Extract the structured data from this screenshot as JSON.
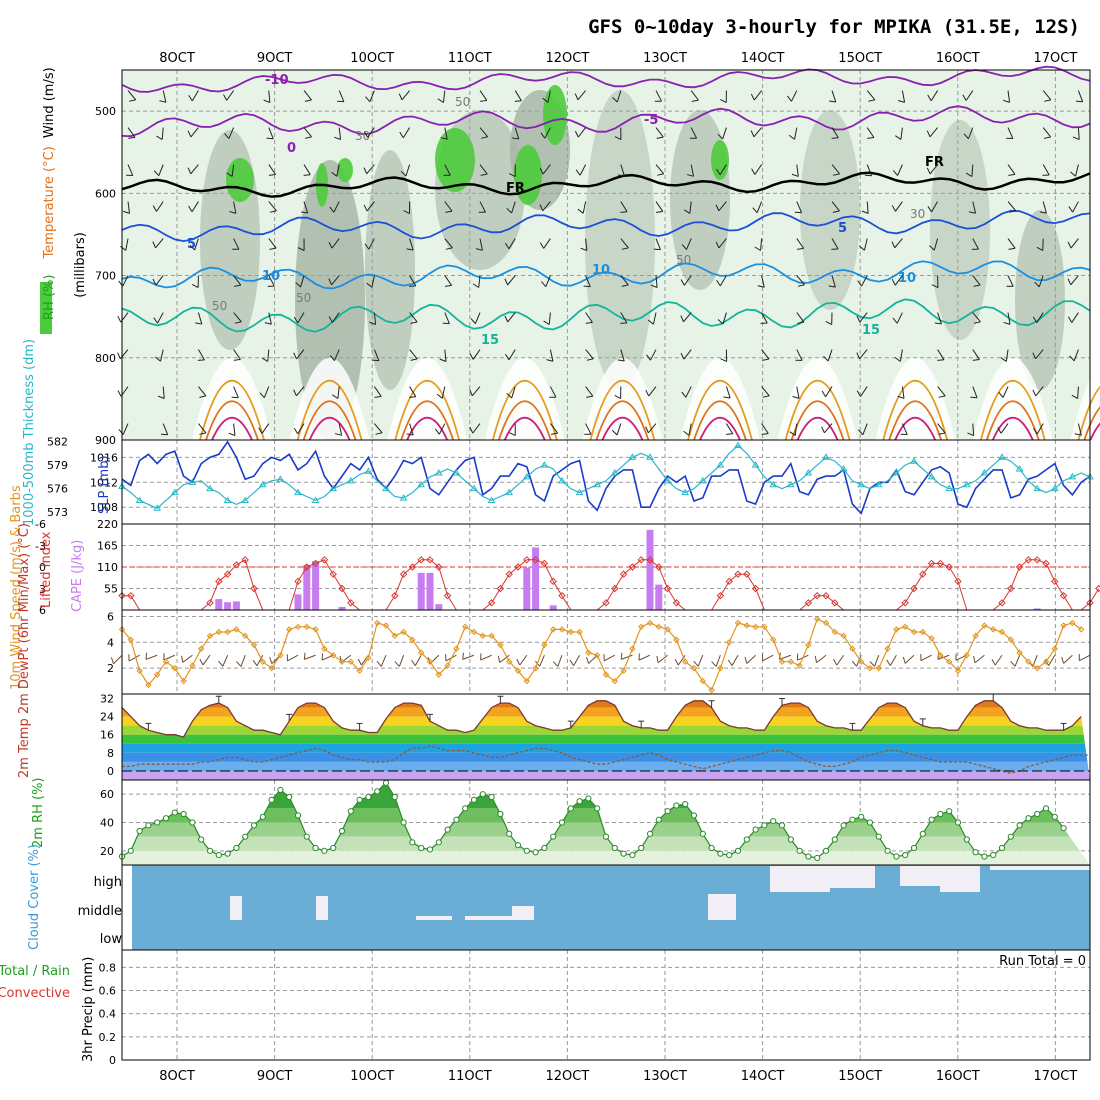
{
  "title": "GFS 0~10day 3-hourly for MPIKA (31.5E, 12S)",
  "colors": {
    "purple": "#8a1fb0",
    "blue": "#1a4fd6",
    "lightblue": "#1c8ee0",
    "teal": "#14b39a",
    "orange": "#e59b1c",
    "darkorange": "#e0701a",
    "magenta": "#d11a7a",
    "cyan": "#27b7c9",
    "navy": "#1a3bc9",
    "cape": "#c77cf0",
    "li": "#d9342b",
    "windspd": "#e3951c",
    "barb": "#6b4a2e",
    "rh": "#3aa63a",
    "cloud": "#6aaed6"
  },
  "chart_data": [
    {
      "type": "contour",
      "panel": "upper-air",
      "ylabel_parts": [
        "RH (%)",
        "Temperature (°C)",
        "Wind (m/s)"
      ],
      "ylabel_units": "(millibars)",
      "ylim": [
        900,
        450
      ],
      "y_ticks": [
        500,
        600,
        700,
        800,
        900
      ],
      "temp_contour_labels": [
        "-10",
        "-5",
        "0",
        "5",
        "10",
        "15",
        "FR"
      ],
      "rh_contour_labels": [
        "30",
        "50"
      ]
    },
    {
      "type": "line",
      "panel": "thickness-slp",
      "ylabel_left": "1000-500mb Thickness (dm)",
      "ylabel_right": "SLP (mb)",
      "thickness_ticks": [
        582,
        579,
        576,
        573
      ],
      "slp_ticks": [
        1016,
        1012,
        1008
      ],
      "series": [
        {
          "name": "SLP (mb)",
          "values": [
            1012.5,
            1011.5,
            1015.5,
            1016.5,
            1015,
            1016.5,
            1017,
            1013,
            1012,
            1015,
            1016,
            1016.5,
            1018.5,
            1016,
            1012.5,
            1013,
            1015,
            1016,
            1015.5,
            1016.5,
            1014,
            1015,
            1017,
            1013,
            1011,
            1013,
            1015,
            1014,
            1016,
            1012.5,
            1011,
            1013,
            1015.5,
            1015,
            1016,
            1011,
            1010,
            1012,
            1014,
            1015.5,
            1016,
            1010,
            1011,
            1013,
            1013,
            1015,
            1014.5,
            1010,
            1009,
            1013,
            1014,
            1015,
            1015.5,
            1009,
            1007.5,
            1011,
            1013,
            1014,
            1014,
            1008,
            1008,
            1011,
            1013,
            1012,
            1013,
            1009,
            1009.5,
            1013,
            1013,
            1014,
            1014,
            1009,
            1008.5,
            1012,
            1013,
            1013,
            1015,
            1010.5,
            1010,
            1012.5,
            1013,
            1013,
            1014,
            1008.5,
            1007,
            1011,
            1012,
            1012,
            1014,
            1010.5,
            1010,
            1012,
            1014,
            1014.5,
            1013.5,
            1008.5,
            1008,
            1011,
            1012.5,
            1014,
            1014,
            1009.5,
            1010,
            1012.5,
            1013,
            1014,
            1015,
            1011.5,
            1010,
            1012,
            1013
          ]
        },
        {
          "name": "1000-500mb Thickness (dm)",
          "values": [
            576.3,
            575.5,
            574.5,
            574,
            573.5,
            574.5,
            575.5,
            576.5,
            576.8,
            577,
            576,
            575.5,
            574.5,
            574,
            574.5,
            575.5,
            576.5,
            577,
            577.2,
            576.5,
            575.5,
            575,
            574.5,
            575,
            576,
            576.5,
            577,
            577.8,
            578.2,
            577,
            576,
            575,
            574.8,
            575.5,
            576.5,
            577.5,
            578,
            578.5,
            578,
            577,
            576,
            575,
            574.5,
            575,
            575.5,
            576.5,
            577.5,
            578.5,
            579,
            578.5,
            577,
            576,
            575.5,
            576,
            576.5,
            577,
            578,
            579,
            580,
            580.5,
            580,
            578.5,
            577,
            576,
            575.5,
            576,
            577,
            578,
            579,
            580.5,
            581.5,
            580.5,
            579,
            577.5,
            576.5,
            576,
            576.5,
            577,
            578,
            579,
            580,
            579.5,
            578.5,
            577,
            576.5,
            576,
            576.5,
            577,
            578,
            579,
            579.5,
            578.5,
            577.5,
            576.5,
            576,
            576,
            576.5,
            577,
            578,
            579,
            580,
            579.5,
            578.5,
            577,
            576,
            575.5,
            576,
            577,
            577.5,
            578,
            577.5
          ]
        }
      ]
    },
    {
      "type": "bar",
      "panel": "cape-li",
      "ylabel_left": "Lifted Index",
      "ylabel_right": "CAPE (J/kg)",
      "li_ticks": [
        "6",
        "3",
        "0",
        "-3",
        "-6"
      ],
      "cape_ticks": [
        220,
        165,
        110,
        55
      ],
      "series": [
        {
          "name": "CAPE (J/kg)",
          "values": [
            0,
            0,
            0,
            0,
            0,
            0,
            0,
            0,
            0,
            0,
            0,
            28,
            20,
            22,
            0,
            0,
            0,
            0,
            0,
            0,
            40,
            115,
            125,
            0,
            0,
            8,
            0,
            0,
            0,
            0,
            0,
            0,
            0,
            0,
            95,
            95,
            15,
            0,
            0,
            0,
            0,
            0,
            0,
            0,
            0,
            0,
            108,
            160,
            0,
            12,
            0,
            0,
            0,
            0,
            0,
            0,
            0,
            0,
            0,
            0,
            205,
            65,
            0,
            0,
            0,
            0,
            0,
            0,
            0,
            0,
            0,
            0,
            0,
            0,
            0,
            0,
            0,
            0,
            0,
            0,
            0,
            0,
            0,
            0,
            0,
            0,
            0,
            0,
            0,
            0,
            0,
            0,
            0,
            0,
            0,
            0,
            0,
            0,
            0,
            0,
            0,
            0,
            0,
            0,
            4,
            0,
            0,
            0,
            0,
            0,
            0,
            0
          ]
        },
        {
          "name": "Lifted Index",
          "values": [
            4,
            4,
            6,
            6,
            6,
            6,
            6,
            6,
            6,
            6,
            5,
            2,
            1,
            -0.3,
            -1,
            3,
            6,
            6,
            6,
            6,
            2,
            0,
            -0.5,
            -1,
            1,
            3,
            5,
            6,
            6,
            6,
            6,
            4,
            1,
            0,
            -1,
            -1,
            0,
            4,
            6,
            6,
            6,
            6,
            5,
            3,
            1,
            0,
            -1,
            -1,
            -0.5,
            2,
            4,
            6,
            6,
            6,
            6,
            5,
            3,
            1,
            0,
            -1,
            -1,
            0,
            3,
            5,
            6,
            6,
            6,
            6,
            4,
            2,
            1,
            1,
            3,
            6,
            6,
            6,
            6,
            6,
            5,
            4,
            4,
            5,
            6,
            6,
            6,
            6,
            6,
            6,
            6,
            5,
            3,
            1,
            -0.5,
            -0.5,
            0,
            2,
            6,
            6,
            6,
            6,
            5,
            3,
            0,
            -1,
            -1,
            -0.5,
            2,
            4,
            6,
            6,
            5,
            3
          ]
        }
      ]
    },
    {
      "type": "line",
      "panel": "wind10m",
      "ylabel": "10m Wind Speed (m/s) & Barbs",
      "y_ticks": [
        6,
        4,
        2
      ],
      "ylim": [
        0,
        6.5
      ],
      "series": [
        {
          "name": "10m Wind Speed (m/s)",
          "values": [
            5,
            4.2,
            1.8,
            0.7,
            1.5,
            2.5,
            2,
            1,
            2.2,
            3.5,
            4.5,
            4.8,
            4.8,
            5,
            4.5,
            3.8,
            2.5,
            2,
            3,
            5,
            5.2,
            5.2,
            5,
            3.5,
            3,
            2.5,
            2.5,
            1.8,
            2.8,
            5.5,
            5.3,
            4.5,
            4.8,
            4.2,
            3.2,
            2.5,
            1.5,
            2.2,
            3.5,
            5.2,
            4.8,
            4.5,
            4.5,
            3.8,
            2.5,
            1.8,
            1,
            2,
            3.8,
            5,
            5,
            4.8,
            4.8,
            3.2,
            3,
            1.5,
            1,
            1.8,
            3.5,
            5.2,
            5.5,
            5.2,
            5,
            4.2,
            2.5,
            2,
            1,
            0.3,
            2,
            4,
            5.5,
            5.3,
            5.2,
            5.2,
            4.2,
            2.5,
            2.5,
            2.2,
            3.8,
            5.8,
            5.5,
            4.8,
            4.5,
            3.5,
            2.5,
            2,
            2,
            3.5,
            5,
            5.2,
            4.8,
            4.8,
            4.3,
            3,
            2.5,
            1.8,
            3,
            4.5,
            5.3,
            5,
            4.8,
            4.2,
            3.2,
            2.5,
            2,
            2.5,
            3.5,
            5.3,
            5.5,
            5
          ]
        }
      ]
    },
    {
      "type": "area",
      "panel": "temp2m",
      "ylabel": "2m Temp 2m DewPt (6hr Min/Max) (°C)",
      "y_ticks": [
        32,
        24,
        16,
        8,
        0
      ],
      "ylim": [
        -4,
        34
      ],
      "series": [
        {
          "name": "2m Temp (°C)",
          "values": [
            28,
            24,
            20,
            18,
            17,
            16,
            16,
            15,
            22,
            27,
            29,
            30,
            28,
            22,
            20,
            18,
            18,
            17,
            16,
            22,
            28,
            30,
            30,
            28,
            22,
            19,
            18,
            18,
            17,
            17,
            23,
            28,
            30,
            30,
            29,
            22,
            20,
            18,
            18,
            17,
            18,
            23,
            28,
            30,
            30,
            28,
            22,
            20,
            19,
            18,
            18,
            19,
            24,
            29,
            31,
            31,
            29,
            22,
            20,
            19,
            19,
            18,
            18,
            24,
            29,
            31,
            31,
            28,
            22,
            20,
            19,
            19,
            18,
            18,
            24,
            29,
            30,
            30,
            28,
            22,
            20,
            19,
            19,
            18,
            18,
            23,
            28,
            30,
            30,
            28,
            22,
            20,
            19,
            19,
            18,
            18,
            24,
            29,
            31,
            31,
            28,
            22,
            20,
            19,
            19,
            18,
            18,
            18,
            20,
            24
          ]
        },
        {
          "name": "2m DewPt (°C)",
          "values": [
            2,
            2,
            3,
            3,
            3,
            3,
            3,
            3,
            3,
            4,
            4,
            5,
            6,
            6,
            5,
            4,
            4,
            5,
            6,
            7,
            8,
            9,
            10,
            9,
            7,
            6,
            5,
            5,
            4,
            4,
            4,
            5,
            8,
            10,
            10,
            11,
            10,
            9,
            9,
            9,
            8,
            7,
            6,
            6,
            7,
            8,
            9,
            10,
            10,
            9,
            8,
            6,
            5,
            4,
            3,
            3,
            4,
            5,
            6,
            7,
            8,
            7,
            5,
            4,
            3,
            2,
            1,
            2,
            3,
            4,
            5,
            6,
            7,
            8,
            9,
            9,
            8,
            6,
            4,
            3,
            2,
            2,
            3,
            4,
            6,
            7,
            8,
            9,
            9,
            8,
            7,
            6,
            5,
            4,
            4,
            4,
            4,
            3,
            2,
            1,
            0,
            -1,
            0,
            2,
            3,
            4,
            5,
            6,
            7,
            7,
            7
          ]
        }
      ]
    },
    {
      "type": "area",
      "panel": "rh2m",
      "ylabel": "2m RH (%)",
      "y_ticks": [
        60,
        40,
        20
      ],
      "ylim": [
        10,
        70
      ],
      "series": [
        {
          "name": "2m RH (%)",
          "values": [
            16,
            20,
            34,
            38,
            40,
            43,
            47,
            46,
            40,
            28,
            20,
            17,
            18,
            22,
            30,
            38,
            44,
            56,
            63,
            58,
            45,
            30,
            22,
            20,
            22,
            34,
            48,
            56,
            58,
            62,
            68,
            58,
            40,
            26,
            22,
            21,
            26,
            35,
            42,
            50,
            56,
            60,
            58,
            46,
            32,
            24,
            20,
            19,
            22,
            30,
            40,
            50,
            55,
            57,
            50,
            30,
            22,
            18,
            17,
            22,
            32,
            42,
            48,
            52,
            53,
            45,
            32,
            22,
            18,
            17,
            20,
            28,
            35,
            38,
            41,
            38,
            28,
            20,
            16,
            15,
            20,
            28,
            38,
            42,
            44,
            40,
            30,
            20,
            16,
            17,
            22,
            32,
            42,
            46,
            48,
            40,
            28,
            19,
            16,
            17,
            22,
            30,
            38,
            43,
            46,
            50,
            44,
            36
          ]
        }
      ]
    },
    {
      "type": "heatmap",
      "panel": "cloud",
      "ylabel": "Cloud Cover (%)",
      "levels": [
        "high",
        "middle",
        "low"
      ]
    },
    {
      "type": "bar",
      "panel": "precip",
      "ylabel_parts": [
        "Total / Rain",
        "Convective"
      ],
      "ylabel": "3hr Precip (mm)",
      "y_ticks": [
        "0.8",
        "0.6",
        "0.4",
        "0.2",
        "0"
      ],
      "ylim": [
        0,
        0.95
      ],
      "series": [
        {
          "name": "3hr Precip (mm)",
          "values": []
        }
      ],
      "annotation": "Run Total = 0"
    }
  ],
  "x_axis": {
    "date_labels": [
      "8OCT",
      "9OCT",
      "10OCT",
      "11OCT",
      "12OCT",
      "13OCT",
      "14OCT",
      "15OCT",
      "16OCT",
      "17OCT"
    ]
  }
}
